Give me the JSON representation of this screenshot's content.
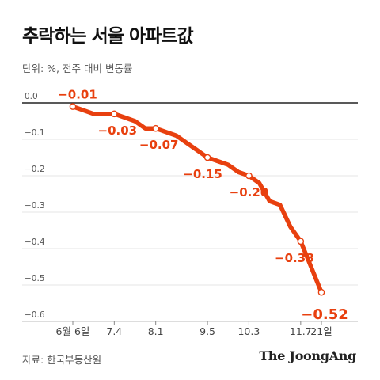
{
  "header": {
    "title": "추락하는 서울 아파트값",
    "subtitle": "단위: %, 전주 대비 변동률"
  },
  "footer": {
    "source": "자료: 한국부동산원",
    "brand": "The JoongAng"
  },
  "colors": {
    "line": "#e8400f",
    "axis": "#222222",
    "grid": "#e6e6e6"
  },
  "chart_data": {
    "type": "line",
    "ylim": [
      -0.6,
      0.0
    ],
    "y_ticks": [
      {
        "value": 0.0,
        "label": "0.0"
      },
      {
        "value": -0.1,
        "label": "-0.1"
      },
      {
        "value": -0.2,
        "label": "-0.2"
      },
      {
        "value": -0.3,
        "label": "-0.3"
      },
      {
        "value": -0.4,
        "label": "-0.4"
      },
      {
        "value": -0.5,
        "label": "-0.5"
      },
      {
        "value": -0.6,
        "label": "-0.6"
      }
    ],
    "x_ticks": [
      {
        "index": 0,
        "label": "6월 6일"
      },
      {
        "index": 4,
        "label": "7.4"
      },
      {
        "index": 8,
        "label": "8.1"
      },
      {
        "index": 13,
        "label": "9.5"
      },
      {
        "index": 17,
        "label": "10.3"
      },
      {
        "index": 22,
        "label": "11.7"
      },
      {
        "index": 24,
        "label": "21일"
      }
    ],
    "series": [
      {
        "values": [
          -0.01,
          -0.02,
          -0.03,
          -0.03,
          -0.03,
          -0.04,
          -0.05,
          -0.07,
          -0.07,
          -0.08,
          -0.09,
          -0.11,
          -0.13,
          -0.15,
          -0.16,
          -0.17,
          -0.19,
          -0.2,
          -0.22,
          -0.27,
          -0.28,
          -0.34,
          -0.38,
          -0.45,
          -0.52
        ]
      }
    ],
    "labeled_points": [
      {
        "index": 0,
        "label": "-0.01"
      },
      {
        "index": 4,
        "label": "-0.03"
      },
      {
        "index": 8,
        "label": "-0.07"
      },
      {
        "index": 13,
        "label": "-0.15"
      },
      {
        "index": 17,
        "label": "-0.20"
      },
      {
        "index": 22,
        "label": "-0.38"
      },
      {
        "index": 24,
        "label": "-0.52"
      }
    ]
  }
}
